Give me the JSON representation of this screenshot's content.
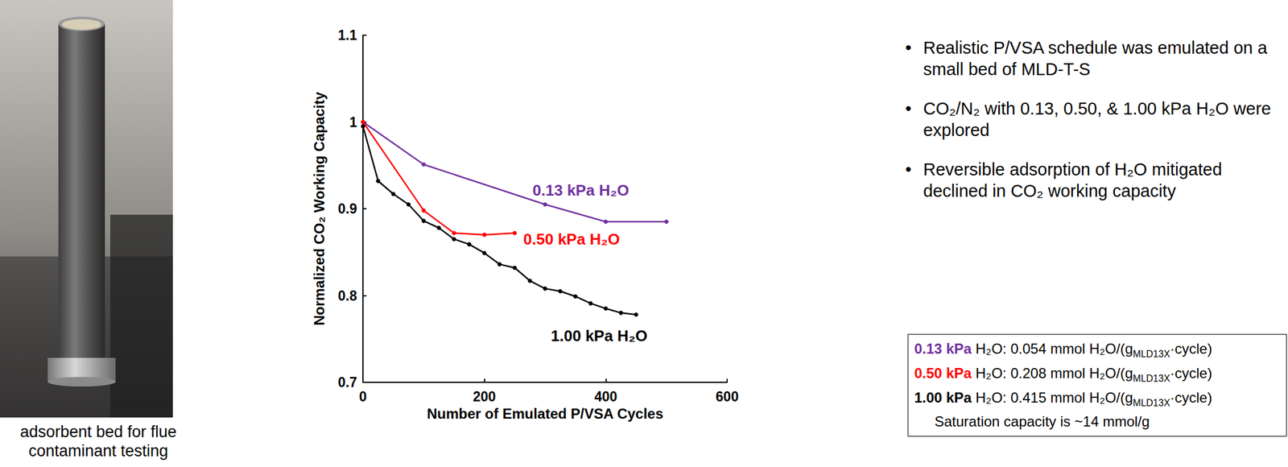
{
  "chart_data": {
    "type": "line",
    "x_label": "Number of Emulated P/VSA Cycles",
    "y_label": "Normalized CO₂ Working Capacity",
    "xlim": [
      0,
      600
    ],
    "xticks": [
      0,
      200,
      400,
      600
    ],
    "ylim": [
      0.7,
      1.1
    ],
    "yticks": [
      0.7,
      0.8,
      0.9,
      1,
      1.1
    ],
    "grid": false,
    "marker": "circle",
    "line_style": "solid",
    "series": [
      {
        "name": "0.13 kPa H₂O",
        "color": "#7030A0",
        "x": [
          0,
          100,
          300,
          400,
          500
        ],
        "values": [
          1,
          0.951,
          0.905,
          0.885,
          0.885
        ]
      },
      {
        "name": "0.50 kPa H₂O",
        "color": "#FF0000",
        "x": [
          0,
          100,
          150,
          200,
          250
        ],
        "values": [
          1,
          0.898,
          0.872,
          0.87,
          0.872
        ]
      },
      {
        "name": "1.00 kPa H₂O",
        "color": "#000000",
        "x": [
          0,
          25,
          50,
          75,
          100,
          125,
          150,
          175,
          200,
          225,
          250,
          275,
          300,
          325,
          350,
          375,
          400,
          425,
          450
        ],
        "values": [
          0.995,
          0.932,
          0.917,
          0.905,
          0.886,
          0.878,
          0.865,
          0.859,
          0.849,
          0.836,
          0.832,
          0.817,
          0.808,
          0.805,
          0.799,
          0.791,
          0.785,
          0.78,
          0.778
        ]
      }
    ]
  },
  "photo_caption": [
    "adsorbent bed for flue",
    "contaminant testing"
  ],
  "bullets": [
    "Realistic P/VSA schedule was emulated on a small bed of MLD-T-S",
    "CO₂/N₂ with 0.13, 0.50, & 1.00 kPa H₂O were explored",
    "Reversible adsorption of H₂O mitigated declined in CO₂ working capacity"
  ],
  "note_box": [
    {
      "color": "#7030A0",
      "parts": [
        {
          "text": "0.13 kPa",
          "bold": true
        },
        {
          "text": " H₂O: 0.054 mmol H₂O/(g"
        },
        {
          "text": "MLD13X",
          "sub": true
        },
        {
          "text": "·cycle)"
        }
      ]
    },
    {
      "color": "#FF0000",
      "parts": [
        {
          "text": "0.50 kPa",
          "bold": true
        },
        {
          "text": " H₂O: 0.208 mmol H₂O/(g"
        },
        {
          "text": "MLD13X",
          "sub": true
        },
        {
          "text": "·cycle)"
        }
      ]
    },
    {
      "color": "#000000",
      "parts": [
        {
          "text": "1.00 kPa",
          "bold": true
        },
        {
          "text": " H₂O: 0.415 mmol H₂O/(g"
        },
        {
          "text": "MLD13X",
          "sub": true
        },
        {
          "text": "·cycle)"
        }
      ]
    },
    {
      "color": "#000000",
      "indent": true,
      "parts": [
        {
          "text": "Saturation capacity is ~14 mmol/g"
        }
      ]
    }
  ]
}
